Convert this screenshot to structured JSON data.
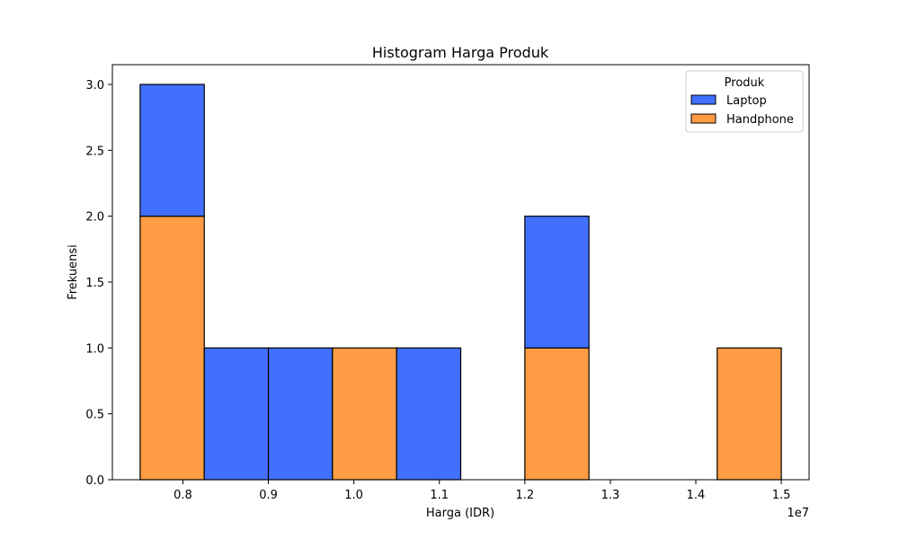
{
  "chart_data": {
    "type": "bar",
    "stacked": true,
    "title": "Histogram Harga Produk",
    "xlabel": "Harga (IDR)",
    "ylabel": "Frekuensi",
    "x_offset_label": "1e7",
    "xlim": [
      0.7175,
      1.5325
    ],
    "ylim": [
      0,
      3.15
    ],
    "x_ticks": [
      0.8,
      0.9,
      1.0,
      1.1,
      1.2,
      1.3,
      1.4,
      1.5
    ],
    "x_tick_labels": [
      "0.8",
      "0.9",
      "1.0",
      "1.1",
      "1.2",
      "1.3",
      "1.4",
      "1.5"
    ],
    "y_ticks": [
      0.0,
      0.5,
      1.0,
      1.5,
      2.0,
      2.5,
      3.0
    ],
    "y_tick_labels": [
      "0.0",
      "0.5",
      "1.0",
      "1.5",
      "2.0",
      "2.5",
      "3.0"
    ],
    "bin_edges": [
      0.75,
      0.825,
      0.9,
      0.975,
      1.05,
      1.125,
      1.2,
      1.275,
      1.35,
      1.425,
      1.5
    ],
    "legend_title": "Produk",
    "legend_position": "top-right",
    "series": [
      {
        "name": "Handphone",
        "color": "#ff9c44",
        "values": [
          2,
          0,
          0,
          1,
          0,
          0,
          1,
          0,
          0,
          1
        ]
      },
      {
        "name": "Laptop",
        "color": "#4170ff",
        "values": [
          1,
          1,
          1,
          0,
          1,
          0,
          1,
          0,
          0,
          0
        ]
      }
    ],
    "legend_order": [
      "Laptop",
      "Handphone"
    ]
  }
}
